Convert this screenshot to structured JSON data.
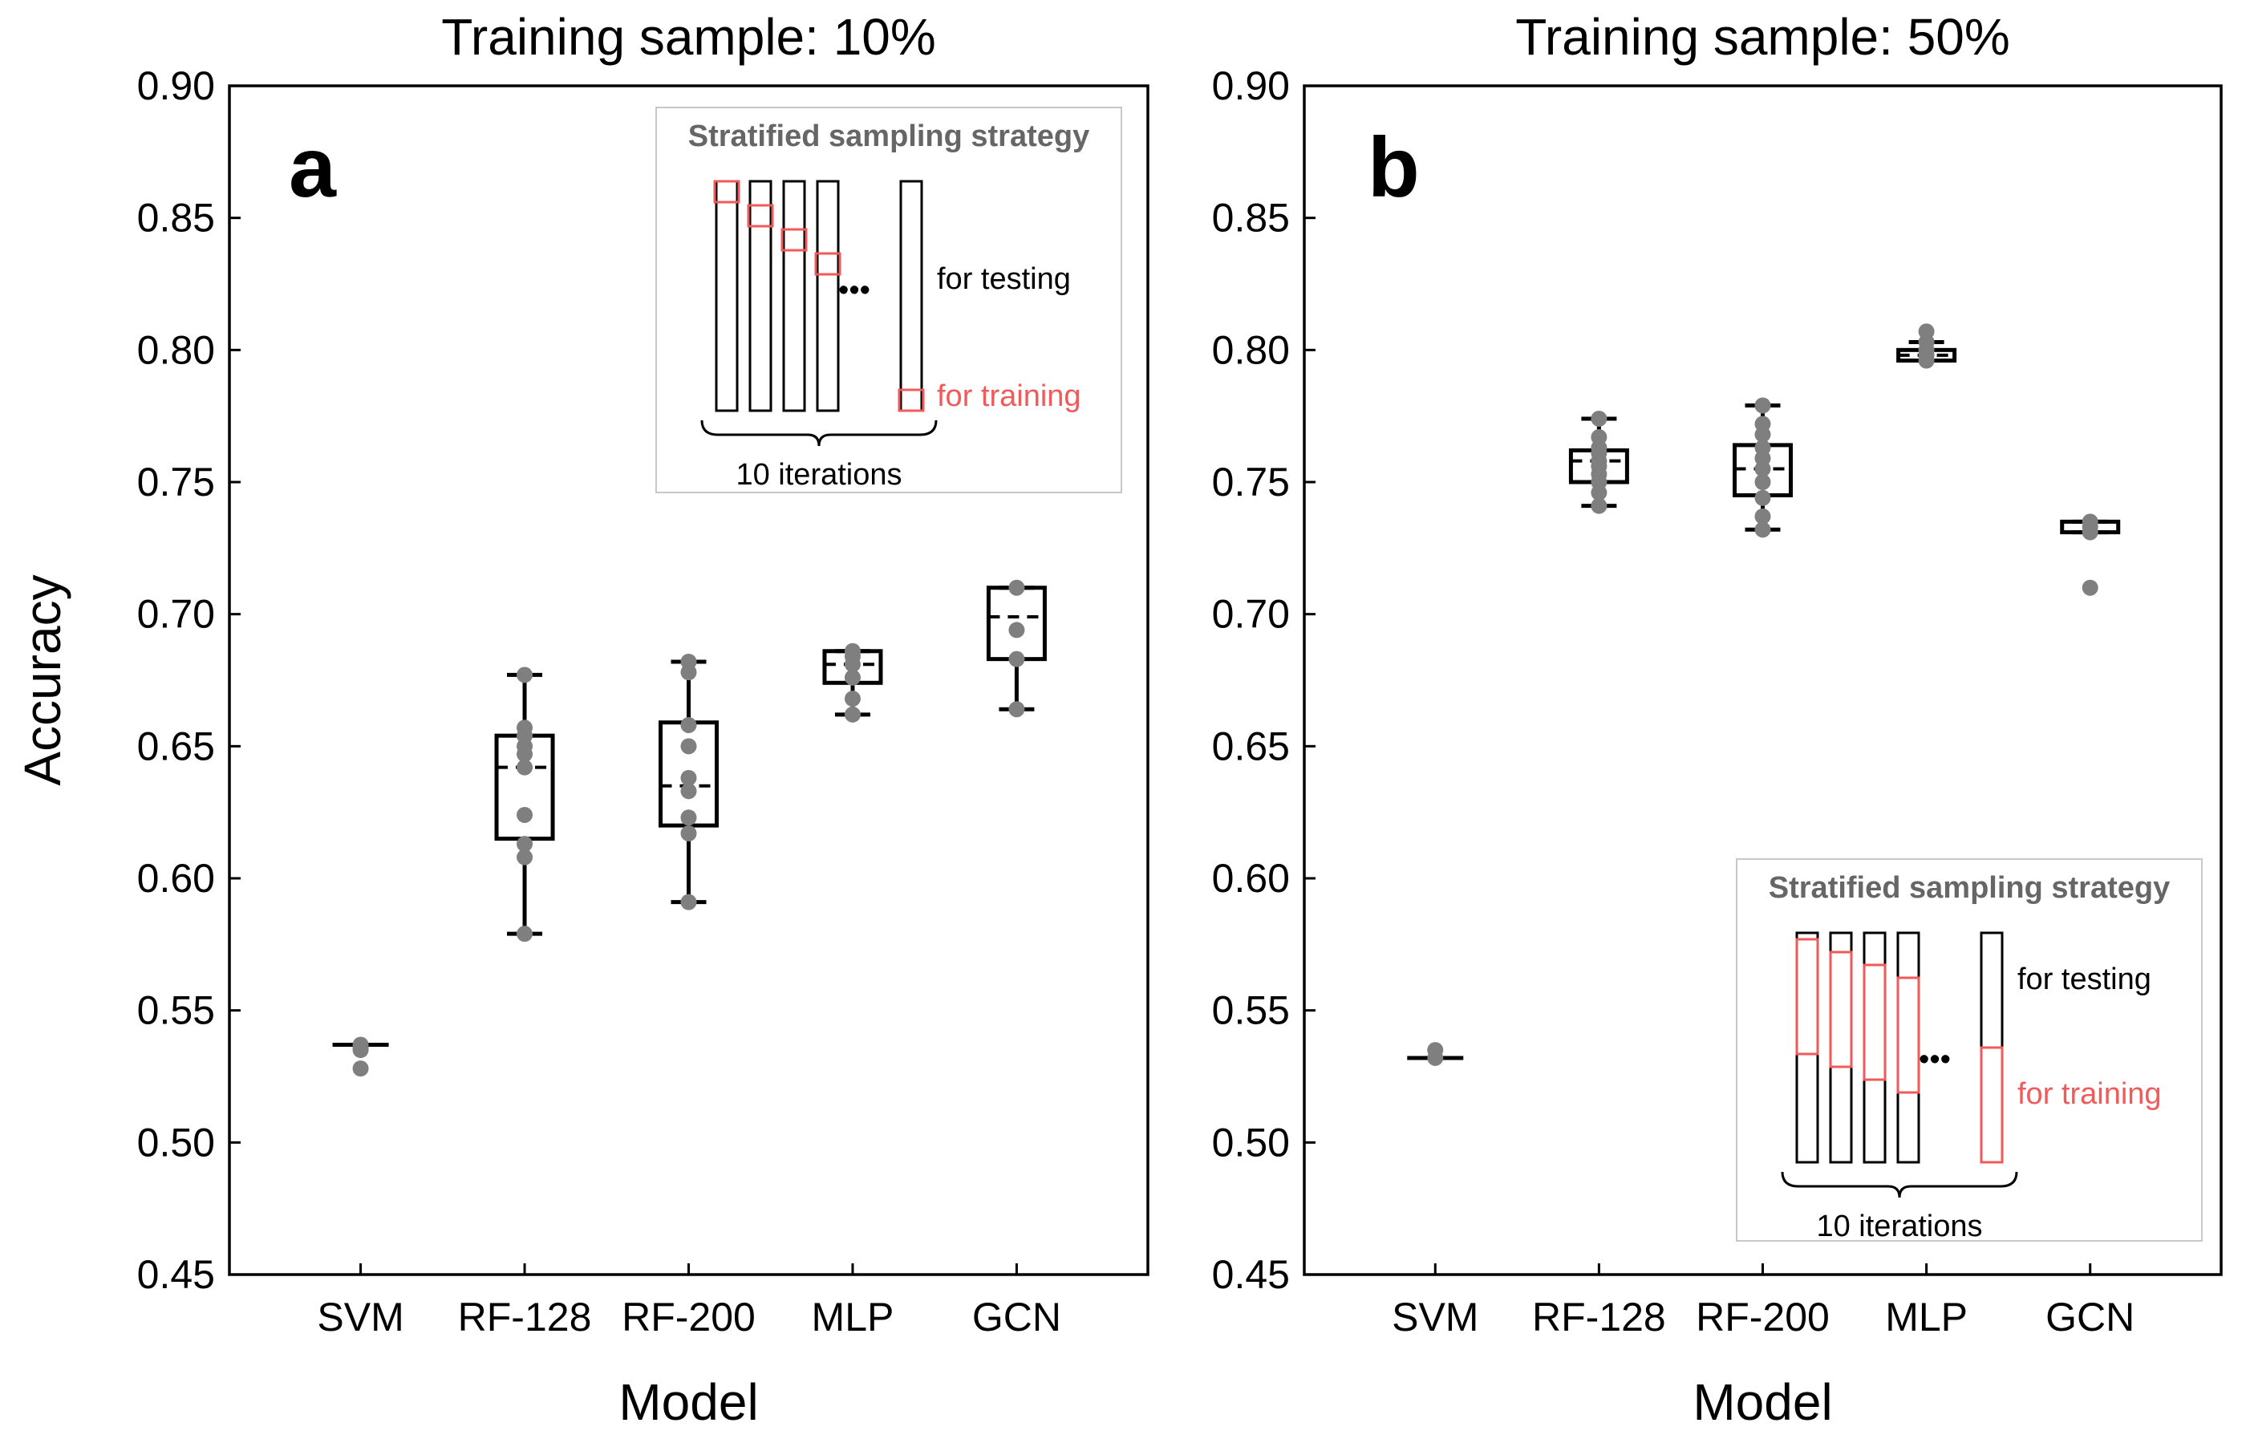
{
  "chart_data": [
    {
      "panel": "a",
      "type": "box",
      "title": "Training sample: 10%",
      "xlabel": "Model",
      "ylabel": "Accuracy",
      "ylim": [
        0.45,
        0.9
      ],
      "yticks": [
        "0.45",
        "0.50",
        "0.55",
        "0.60",
        "0.65",
        "0.70",
        "0.75",
        "0.80",
        "0.85",
        "0.90"
      ],
      "categories": [
        "SVM",
        "RF-128",
        "RF-200",
        "MLP",
        "GCN"
      ],
      "boxes": [
        {
          "q1": 0.537,
          "median": 0.537,
          "q3": 0.537,
          "whislo": 0.537,
          "whishi": 0.537,
          "points": [
            0.528,
            0.535,
            0.537,
            0.536
          ]
        },
        {
          "q1": 0.615,
          "median": 0.642,
          "q3": 0.654,
          "whislo": 0.579,
          "whishi": 0.677,
          "points": [
            0.579,
            0.608,
            0.613,
            0.624,
            0.642,
            0.647,
            0.65,
            0.654,
            0.657,
            0.677
          ]
        },
        {
          "q1": 0.62,
          "median": 0.635,
          "q3": 0.659,
          "whislo": 0.591,
          "whishi": 0.682,
          "points": [
            0.591,
            0.617,
            0.623,
            0.633,
            0.638,
            0.65,
            0.658,
            0.678,
            0.682
          ]
        },
        {
          "q1": 0.674,
          "median": 0.681,
          "q3": 0.686,
          "whislo": 0.662,
          "whishi": 0.686,
          "points": [
            0.662,
            0.668,
            0.676,
            0.681,
            0.684,
            0.686
          ]
        },
        {
          "q1": 0.683,
          "median": 0.699,
          "q3": 0.71,
          "whislo": 0.664,
          "whishi": 0.71,
          "points": [
            0.664,
            0.683,
            0.694,
            0.71
          ]
        }
      ],
      "inset": {
        "title": "Stratified sampling strategy",
        "testing_label": "for testing",
        "training_label": "for training",
        "iterations_label": "10 iterations",
        "ellipsis": "•••"
      }
    },
    {
      "panel": "b",
      "type": "box",
      "title": "Training sample: 50%",
      "xlabel": "Model",
      "ylabel": "",
      "ylim": [
        0.45,
        0.9
      ],
      "yticks": [
        "0.45",
        "0.50",
        "0.55",
        "0.60",
        "0.65",
        "0.70",
        "0.75",
        "0.80",
        "0.85",
        "0.90"
      ],
      "categories": [
        "SVM",
        "RF-128",
        "RF-200",
        "MLP",
        "GCN"
      ],
      "boxes": [
        {
          "q1": 0.532,
          "median": 0.532,
          "q3": 0.532,
          "whislo": 0.532,
          "whishi": 0.532,
          "points": [
            0.532,
            0.535
          ]
        },
        {
          "q1": 0.75,
          "median": 0.758,
          "q3": 0.762,
          "whislo": 0.741,
          "whishi": 0.774,
          "points": [
            0.741,
            0.746,
            0.75,
            0.753,
            0.756,
            0.758,
            0.761,
            0.763,
            0.767,
            0.774
          ]
        },
        {
          "q1": 0.745,
          "median": 0.755,
          "q3": 0.764,
          "whislo": 0.732,
          "whishi": 0.779,
          "points": [
            0.732,
            0.737,
            0.744,
            0.75,
            0.755,
            0.759,
            0.763,
            0.768,
            0.772,
            0.779
          ]
        },
        {
          "q1": 0.796,
          "median": 0.798,
          "q3": 0.8,
          "whislo": 0.796,
          "whishi": 0.803,
          "points": [
            0.796,
            0.798,
            0.8,
            0.803,
            0.807
          ]
        },
        {
          "q1": 0.731,
          "median": 0.731,
          "q3": 0.735,
          "whislo": 0.731,
          "whishi": 0.735,
          "points": [
            0.71,
            0.731,
            0.733,
            0.735
          ]
        }
      ],
      "inset": {
        "title": "Stratified sampling strategy",
        "testing_label": "for testing",
        "training_label": "for training",
        "iterations_label": "10 iterations",
        "ellipsis": "•••"
      }
    }
  ]
}
